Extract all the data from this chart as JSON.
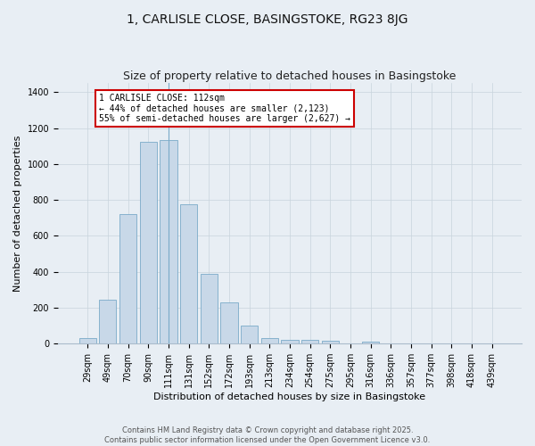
{
  "title": "1, CARLISLE CLOSE, BASINGSTOKE, RG23 8JG",
  "subtitle": "Size of property relative to detached houses in Basingstoke",
  "xlabel": "Distribution of detached houses by size in Basingstoke",
  "ylabel": "Number of detached properties",
  "footer_line1": "Contains HM Land Registry data © Crown copyright and database right 2025.",
  "footer_line2": "Contains public sector information licensed under the Open Government Licence v3.0.",
  "categories": [
    "29sqm",
    "49sqm",
    "70sqm",
    "90sqm",
    "111sqm",
    "131sqm",
    "152sqm",
    "172sqm",
    "193sqm",
    "213sqm",
    "234sqm",
    "254sqm",
    "275sqm",
    "295sqm",
    "316sqm",
    "336sqm",
    "357sqm",
    "377sqm",
    "398sqm",
    "418sqm",
    "439sqm"
  ],
  "values": [
    30,
    245,
    720,
    1125,
    1135,
    775,
    390,
    230,
    100,
    30,
    22,
    20,
    15,
    0,
    10,
    0,
    0,
    0,
    0,
    0,
    0
  ],
  "bar_color": "#c8d8e8",
  "bar_edge_color": "#7aaac8",
  "property_label": "1 CARLISLE CLOSE: 112sqm",
  "annotation_line1": "← 44% of detached houses are smaller (2,123)",
  "annotation_line2": "55% of semi-detached houses are larger (2,627) →",
  "vline_bar_index": 4,
  "annotation_box_color": "#ffffff",
  "annotation_box_edge_color": "#cc0000",
  "ylim": [
    0,
    1450
  ],
  "yticks": [
    0,
    200,
    400,
    600,
    800,
    1000,
    1200,
    1400
  ],
  "grid_color": "#c8d4dc",
  "background_color": "#e8eef4",
  "title_fontsize": 10,
  "subtitle_fontsize": 9,
  "axis_label_fontsize": 8,
  "tick_fontsize": 7,
  "annotation_fontsize": 7,
  "footer_fontsize": 6
}
